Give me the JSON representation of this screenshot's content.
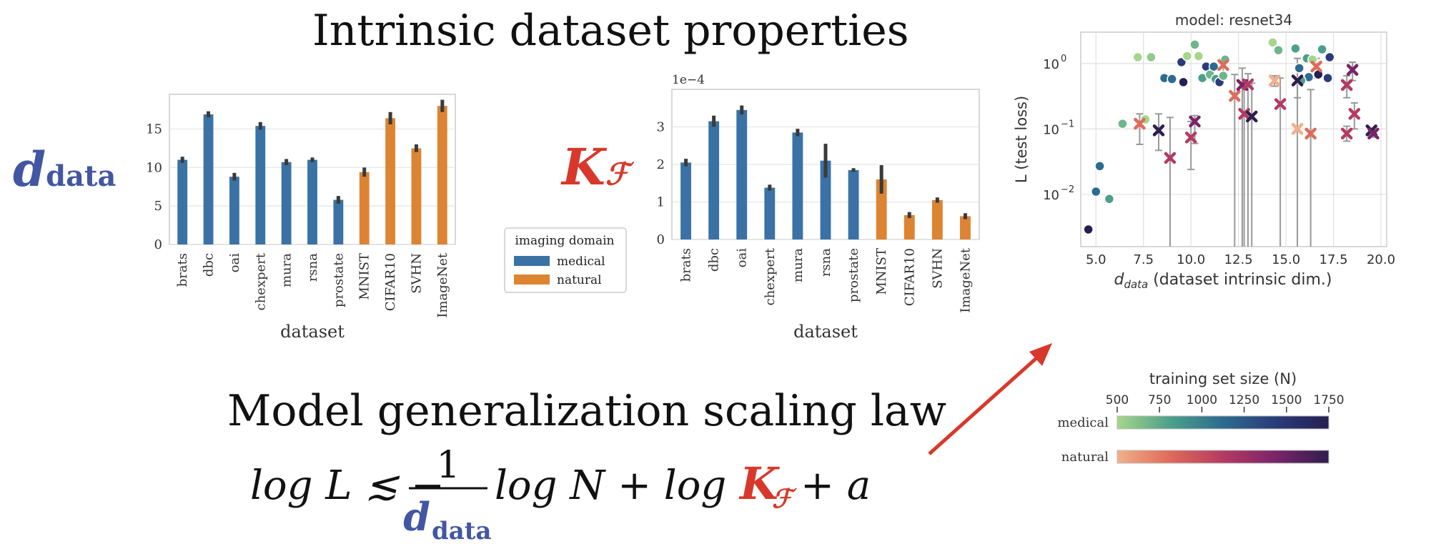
{
  "headings": {
    "top": "Intrinsic dataset properties",
    "bottom": "Model generalization scaling law"
  },
  "symbols": {
    "ddata_main": "d",
    "ddata_sub": "data",
    "kf_main": "K",
    "kf_sub": "ℱ"
  },
  "formula": {
    "part1": "log L ≲ −",
    "numerator": "1",
    "denominator_main": "d",
    "denominator_sub": "data",
    "part2": "log N + log",
    "kf_main": "K",
    "kf_sub": "ℱ",
    "part3": "+ a"
  },
  "legend": {
    "title": "imaging domain",
    "items": [
      {
        "label": "medical",
        "color": "#3a72a6"
      },
      {
        "label": "natural",
        "color": "#dd8433"
      }
    ]
  },
  "colorbar": {
    "title": "training set size (N)",
    "ticks": [
      "500",
      "750",
      "1000",
      "1250",
      "1500",
      "1750"
    ],
    "rows": [
      {
        "label": "medical",
        "colors": [
          "#a6d68a",
          "#4e9f8a",
          "#2d6b8e",
          "#2a3b7a",
          "#261f52"
        ]
      },
      {
        "label": "natural",
        "colors": [
          "#f0b08a",
          "#e06a5a",
          "#b53a62",
          "#7a2468",
          "#2f1d4e"
        ]
      }
    ]
  },
  "chart_data": [
    {
      "type": "bar",
      "categories": [
        "brats",
        "dbc",
        "oai",
        "chexpert",
        "mura",
        "rsna",
        "prostate",
        "MNIST",
        "CIFAR10",
        "SVHN",
        "ImageNet"
      ],
      "values": [
        11.0,
        16.9,
        8.8,
        15.4,
        10.7,
        11.0,
        5.8,
        9.4,
        16.4,
        12.5,
        18.0
      ],
      "errors": [
        0.4,
        0.4,
        0.5,
        0.5,
        0.4,
        0.3,
        0.5,
        0.6,
        0.8,
        0.5,
        0.8
      ],
      "domain": [
        "medical",
        "medical",
        "medical",
        "medical",
        "medical",
        "medical",
        "medical",
        "natural",
        "natural",
        "natural",
        "natural"
      ],
      "xlabel": "dataset",
      "ylabel": "",
      "ylim": [
        0,
        19.5
      ],
      "yticks": [
        "0",
        "5",
        "10",
        "15"
      ],
      "grid": true
    },
    {
      "type": "bar",
      "categories": [
        "brats",
        "dbc",
        "oai",
        "chexpert",
        "mura",
        "rsna",
        "prostate",
        "MNIST",
        "CIFAR10",
        "SVHN",
        "ImageNet"
      ],
      "values": [
        2.05,
        3.15,
        3.45,
        1.38,
        2.85,
        2.1,
        1.85,
        1.6,
        0.65,
        1.05,
        0.62
      ],
      "errors": [
        0.1,
        0.15,
        0.12,
        0.08,
        0.1,
        0.45,
        0.05,
        0.38,
        0.08,
        0.07,
        0.08
      ],
      "domain": [
        "medical",
        "medical",
        "medical",
        "medical",
        "medical",
        "medical",
        "medical",
        "natural",
        "natural",
        "natural",
        "natural"
      ],
      "xlabel": "dataset",
      "ylabel": "",
      "scale_label": "1e−4",
      "ylim": [
        0,
        4.0
      ],
      "yticks": [
        "0",
        "1",
        "2",
        "3"
      ],
      "grid": true
    },
    {
      "type": "scatter",
      "title": "model: resnet34",
      "xlabel": "d",
      "xlabel_sub": "data",
      "xlabel_rest": " (dataset intrinsic dim.)",
      "ylabel": "L (test loss)",
      "xlim": [
        4.2,
        20.3
      ],
      "ylim_log10": [
        -2.8,
        0.48
      ],
      "yscale": "log",
      "xticks": [
        "5.0",
        "7.5",
        "10.0",
        "12.5",
        "15.0",
        "17.5",
        "20.0"
      ],
      "yticks": [
        {
          "base": "10",
          "exp": "−2",
          "val": -2
        },
        {
          "base": "10",
          "exp": "−1",
          "val": -1
        },
        {
          "base": "10",
          "exp": "0",
          "val": 0
        }
      ],
      "medical_points": [
        {
          "x": 4.6,
          "y": 0.0029,
          "c": "#261f52"
        },
        {
          "x": 5.0,
          "y": 0.011,
          "c": "#2d6b8e"
        },
        {
          "x": 5.2,
          "y": 0.027,
          "c": "#2d6b8e"
        },
        {
          "x": 5.7,
          "y": 0.0085,
          "c": "#4e9f8a"
        },
        {
          "x": 6.4,
          "y": 0.12,
          "c": "#6db68a"
        },
        {
          "x": 7.2,
          "y": 1.25,
          "c": "#a6d68a"
        },
        {
          "x": 7.6,
          "y": 0.14,
          "c": "#a6d68a"
        },
        {
          "x": 7.9,
          "y": 1.25,
          "c": "#8fcb89"
        },
        {
          "x": 8.6,
          "y": 0.6,
          "c": "#2d6b8e"
        },
        {
          "x": 9.0,
          "y": 0.58,
          "c": "#2d6b8e"
        },
        {
          "x": 9.5,
          "y": 1.05,
          "c": "#2a3b7a"
        },
        {
          "x": 9.6,
          "y": 0.52,
          "c": "#261f52"
        },
        {
          "x": 9.8,
          "y": 1.3,
          "c": "#a6d68a"
        },
        {
          "x": 10.2,
          "y": 1.95,
          "c": "#6db68a"
        },
        {
          "x": 10.4,
          "y": 1.3,
          "c": "#a6d68a"
        },
        {
          "x": 10.6,
          "y": 0.6,
          "c": "#4e9f8a"
        },
        {
          "x": 10.8,
          "y": 0.9,
          "c": "#2a3b7a"
        },
        {
          "x": 11.0,
          "y": 0.68,
          "c": "#6db68a"
        },
        {
          "x": 11.2,
          "y": 0.9,
          "c": "#2d6b8e"
        },
        {
          "x": 11.3,
          "y": 0.58,
          "c": "#4e9f8a"
        },
        {
          "x": 11.5,
          "y": 0.52,
          "c": "#2a3b7a"
        },
        {
          "x": 11.7,
          "y": 0.65,
          "c": "#6db68a"
        },
        {
          "x": 11.8,
          "y": 1.15,
          "c": "#6db68a"
        },
        {
          "x": 14.3,
          "y": 2.1,
          "c": "#a6d68a"
        },
        {
          "x": 14.6,
          "y": 1.6,
          "c": "#6db68a"
        },
        {
          "x": 15.5,
          "y": 1.7,
          "c": "#4e9f8a"
        },
        {
          "x": 15.7,
          "y": 0.85,
          "c": "#2d6b8e"
        },
        {
          "x": 16.1,
          "y": 1.2,
          "c": "#4e9f8a"
        },
        {
          "x": 16.4,
          "y": 1.15,
          "c": "#a6d68a"
        },
        {
          "x": 16.7,
          "y": 0.68,
          "c": "#261f52"
        },
        {
          "x": 16.9,
          "y": 1.65,
          "c": "#4e9f8a"
        },
        {
          "x": 17.2,
          "y": 0.6,
          "c": "#2a3b7a"
        },
        {
          "x": 17.3,
          "y": 1.25,
          "c": "#2a3b7a"
        },
        {
          "x": 16.2,
          "y": 0.62,
          "c": "#2d6b8e"
        },
        {
          "x": 15.8,
          "y": 0.55,
          "c": "#4e9f8a"
        }
      ],
      "natural_points": [
        {
          "x": 7.3,
          "y": 0.12,
          "c": "#e06a5a",
          "lo": 0.058,
          "hi": 0.17
        },
        {
          "x": 8.3,
          "y": 0.095,
          "c": "#2f1d4e",
          "lo": 0.047,
          "hi": 0.17
        },
        {
          "x": 8.9,
          "y": 0.036,
          "c": "#b53a62",
          "lo": 0.0015,
          "hi": 0.15
        },
        {
          "x": 10.0,
          "y": 0.074,
          "c": "#b53a62",
          "lo": 0.024,
          "hi": 0.13
        },
        {
          "x": 10.2,
          "y": 0.13,
          "c": "#7a2468",
          "lo": 0.06,
          "hi": 0.16
        },
        {
          "x": 11.7,
          "y": 0.95,
          "c": "#e06a5a",
          "lo": 0.6,
          "hi": 1.2
        },
        {
          "x": 12.3,
          "y": 0.32,
          "c": "#e06a5a",
          "lo": 0.0015,
          "hi": 0.68
        },
        {
          "x": 12.7,
          "y": 0.47,
          "c": "#7a2468",
          "lo": 0.0015,
          "hi": 0.85
        },
        {
          "x": 12.8,
          "y": 0.17,
          "c": "#b53a62",
          "lo": 0.0015,
          "hi": 0.52
        },
        {
          "x": 13.0,
          "y": 0.48,
          "c": "#b53a62",
          "lo": 0.0015,
          "hi": 0.7
        },
        {
          "x": 13.2,
          "y": 0.155,
          "c": "#2f1d4e",
          "lo": 0.0015,
          "hi": 0.5
        },
        {
          "x": 14.7,
          "y": 0.24,
          "c": "#b53a62",
          "lo": 0.0015,
          "hi": 0.6
        },
        {
          "x": 14.4,
          "y": 0.55,
          "c": "#f0b08a",
          "lo": 0.45,
          "hi": 0.65
        },
        {
          "x": 15.6,
          "y": 0.55,
          "c": "#2f1d4e",
          "lo": 0.3,
          "hi": 1.2
        },
        {
          "x": 15.6,
          "y": 0.1,
          "c": "#f0b08a",
          "lo": 0.0015,
          "hi": 0.5
        },
        {
          "x": 16.3,
          "y": 0.085,
          "c": "#e06a5a",
          "lo": 0.0015,
          "hi": 0.4
        },
        {
          "x": 16.6,
          "y": 0.9,
          "c": "#e06a5a",
          "lo": 0.6,
          "hi": 1.2
        },
        {
          "x": 18.2,
          "y": 0.085,
          "c": "#b53a62",
          "lo": 0.065,
          "hi": 0.11
        },
        {
          "x": 18.2,
          "y": 0.47,
          "c": "#b53a62",
          "lo": 0.3,
          "hi": 0.65
        },
        {
          "x": 18.5,
          "y": 0.8,
          "c": "#7a2468",
          "lo": 0.55,
          "hi": 1.05
        },
        {
          "x": 18.6,
          "y": 0.17,
          "c": "#b53a62",
          "lo": 0.1,
          "hi": 0.25
        },
        {
          "x": 19.5,
          "y": 0.095,
          "c": "#2f1d4e",
          "lo": 0.08,
          "hi": 0.1
        },
        {
          "x": 19.6,
          "y": 0.085,
          "c": "#7a2468",
          "lo": 0.075,
          "hi": 0.095
        }
      ],
      "grid": true
    }
  ]
}
